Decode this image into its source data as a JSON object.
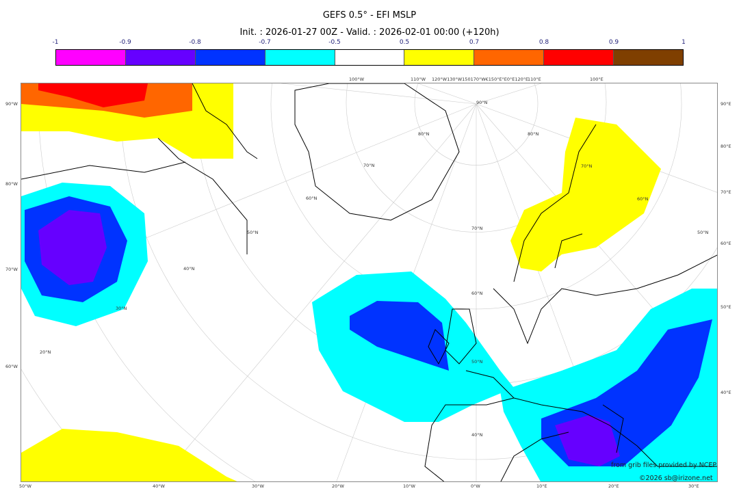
{
  "title": "GEFS 0.5° - EFI MSLP",
  "subtitle": "Init. : 2026-01-27 00Z - Valid. : 2026-02-01 00:00 (+120h)",
  "colorbar": {
    "ticks": [
      "-1",
      "-0.9",
      "-0.8",
      "-0.7",
      "-0.5",
      "0.5",
      "0.7",
      "0.8",
      "0.9",
      "1"
    ],
    "colors": [
      "#ff00ff",
      "#6600ff",
      "#0033ff",
      "#00ffff",
      "#ffffff",
      "#ffff00",
      "#ff6600",
      "#ff0000",
      "#7f3f00"
    ]
  },
  "labels": {
    "left": [
      "90°W",
      "80°W",
      "70°W",
      "60°W"
    ],
    "right": [
      "90°E",
      "80°E",
      "70°E",
      "60°E",
      "50°E",
      "40°E"
    ],
    "bottom": [
      "50°W",
      "40°W",
      "30°W",
      "20°W",
      "10°W",
      "0°W",
      "10°E",
      "20°E",
      "30°E"
    ],
    "top": [
      "100°W",
      "110°W",
      "120°W130°W150170°W€150°E°E0°E120°E",
      "110°E",
      "100°E"
    ],
    "interior": [
      "90°N",
      "80°N",
      "70°N",
      "60°N",
      "50°N",
      "40°N",
      "30°N",
      "20°N",
      "80°N",
      "70°N",
      "60°N",
      "50°N",
      "40°N",
      "70°N",
      "60°N",
      "50°N"
    ]
  },
  "credits": [
    "from grib files provided by NCEP",
    "©2026 sb@irizone.net"
  ]
}
